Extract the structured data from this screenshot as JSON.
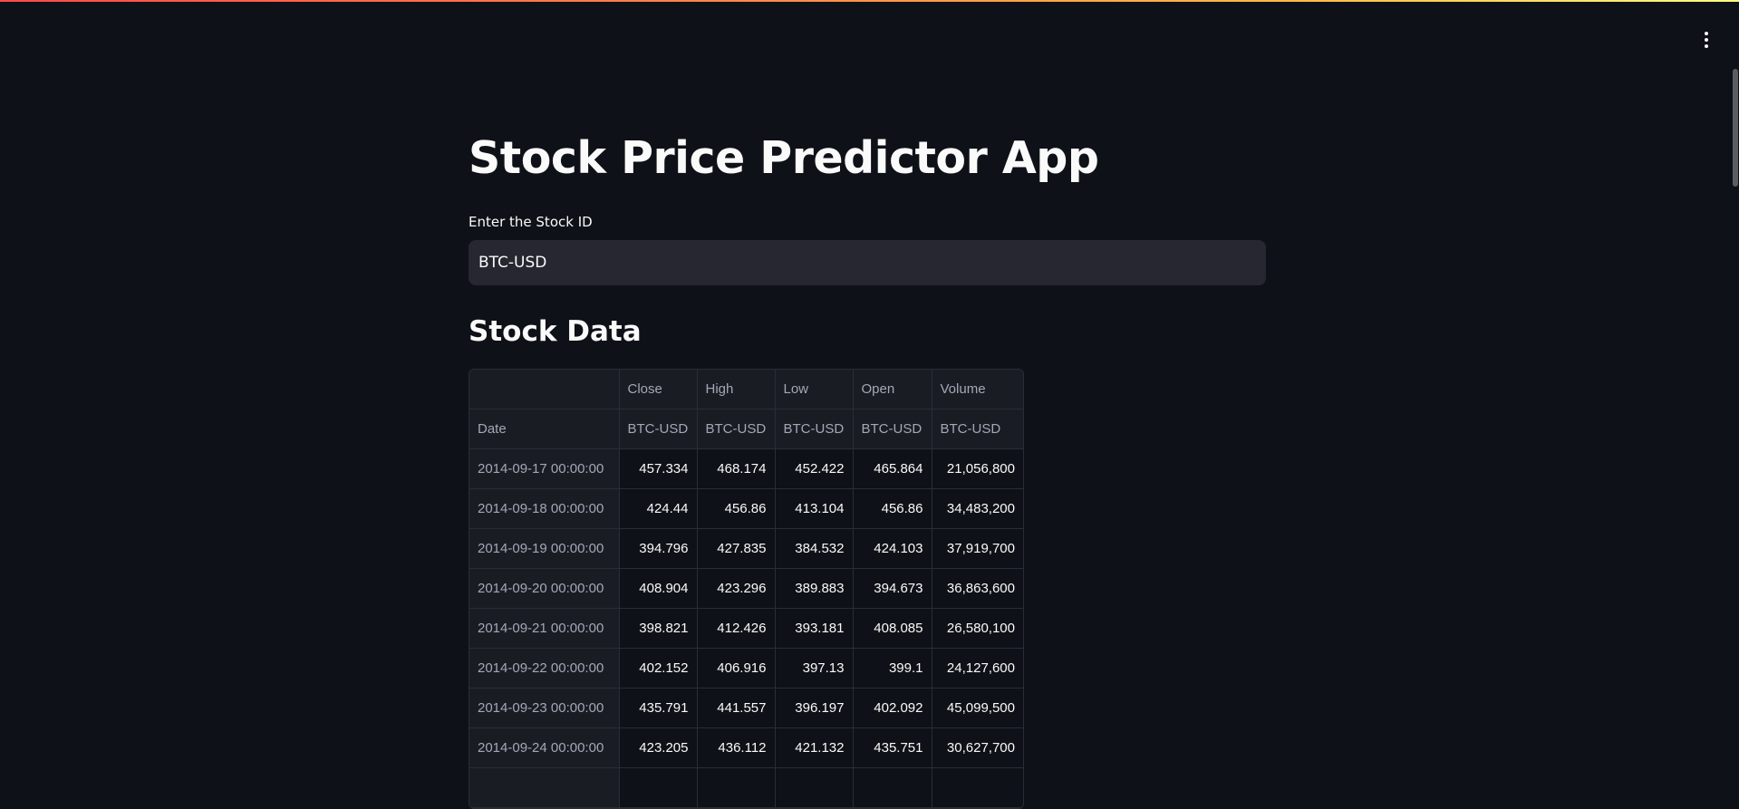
{
  "app": {
    "title": "Stock Price Predictor App"
  },
  "input": {
    "label": "Enter the Stock ID",
    "value": "BTC-USD"
  },
  "section": {
    "heading": "Stock Data"
  },
  "table": {
    "columns": [
      "Close",
      "High",
      "Low",
      "Open",
      "Volume"
    ],
    "tickers": [
      "BTC-USD",
      "BTC-USD",
      "BTC-USD",
      "BTC-USD",
      "BTC-USD"
    ],
    "index_label": "Date",
    "rows": [
      {
        "date": "2014-09-17 00:00:00",
        "close": "457.334",
        "high": "468.174",
        "low": "452.422",
        "open": "465.864",
        "volume": "21,056,800"
      },
      {
        "date": "2014-09-18 00:00:00",
        "close": "424.44",
        "high": "456.86",
        "low": "413.104",
        "open": "456.86",
        "volume": "34,483,200"
      },
      {
        "date": "2014-09-19 00:00:00",
        "close": "394.796",
        "high": "427.835",
        "low": "384.532",
        "open": "424.103",
        "volume": "37,919,700"
      },
      {
        "date": "2014-09-20 00:00:00",
        "close": "408.904",
        "high": "423.296",
        "low": "389.883",
        "open": "394.673",
        "volume": "36,863,600"
      },
      {
        "date": "2014-09-21 00:00:00",
        "close": "398.821",
        "high": "412.426",
        "low": "393.181",
        "open": "408.085",
        "volume": "26,580,100"
      },
      {
        "date": "2014-09-22 00:00:00",
        "close": "402.152",
        "high": "406.916",
        "low": "397.13",
        "open": "399.1",
        "volume": "24,127,600"
      },
      {
        "date": "2014-09-23 00:00:00",
        "close": "435.791",
        "high": "441.557",
        "low": "396.197",
        "open": "402.092",
        "volume": "45,099,500"
      },
      {
        "date": "2014-09-24 00:00:00",
        "close": "423.205",
        "high": "436.112",
        "low": "421.132",
        "open": "435.751",
        "volume": "30,627,700"
      },
      {
        "date": "",
        "close": "",
        "high": "",
        "low": "",
        "open": "",
        "volume": ""
      }
    ]
  },
  "icons": {
    "menu": "vertical-ellipsis-icon"
  },
  "colors": {
    "background": "#0e1117",
    "input_background": "#262730",
    "header_text": "#a3a8b4",
    "accent_gradient_start": "#ff4b4b",
    "accent_gradient_end": "#fffd80"
  }
}
